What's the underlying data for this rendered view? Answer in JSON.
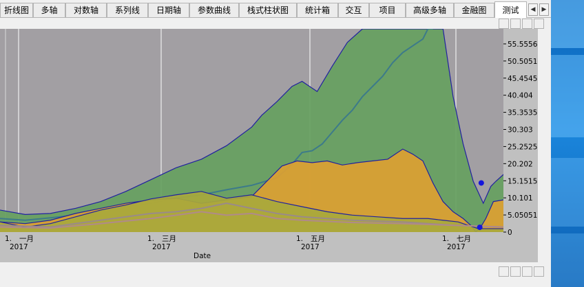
{
  "tabs": [
    {
      "label": "折线图",
      "active": false
    },
    {
      "label": "多轴",
      "active": false
    },
    {
      "label": "对数轴",
      "active": false
    },
    {
      "label": "系列线",
      "active": false
    },
    {
      "label": "日期轴",
      "active": false
    },
    {
      "label": "参数曲线",
      "active": false
    },
    {
      "label": "栈式柱状图",
      "active": false
    },
    {
      "label": "统计箱",
      "active": false
    },
    {
      "label": "交互",
      "active": false
    },
    {
      "label": "项目",
      "active": false
    },
    {
      "label": "高级多轴",
      "active": false
    },
    {
      "label": "金融图",
      "active": false
    },
    {
      "label": "测试",
      "active": true
    }
  ],
  "tab_scroll": {
    "left_icon": "chevron-left-icon",
    "right_icon": "chevron-right-icon"
  },
  "colors": {
    "plot_bg": "#a29fa3",
    "outer_bg": "#c0c0c0",
    "green_fill": "#66a060",
    "orange_fill": "#dca032",
    "olive_fill": "#a8a83c",
    "navy_line": "#2020a0",
    "teal_line": "#3c7a8a",
    "grid": "#ffffff",
    "marker": "#1414dc"
  },
  "chart_data": {
    "type": "area",
    "title": "",
    "xlabel": "Date",
    "ylabel": "",
    "x_ticks": [
      {
        "day": "1.",
        "month": "一月",
        "year": "2017"
      },
      {
        "day": "1.",
        "month": "三月",
        "year": "2017"
      },
      {
        "day": "1.",
        "month": "五月",
        "year": "2017"
      },
      {
        "day": "1.",
        "month": "七月",
        "year": "2017"
      }
    ],
    "y_ticks": [
      "55.5556",
      "50.5051",
      "45.4545",
      "40.404",
      "35.3535",
      "30.303",
      "25.2525",
      "20.202",
      "15.1515",
      "10.101",
      "5.05051",
      "0"
    ],
    "ylim": [
      0,
      60
    ],
    "x_range": [
      "2016-12-26",
      "2017-07-22"
    ],
    "grid": true,
    "series": [
      {
        "style": "filled-area",
        "color": "#66a060",
        "edge": "#2020a0",
        "points": [
          [
            0,
            6.5
          ],
          [
            5,
            5.2
          ],
          [
            10,
            5.5
          ],
          [
            15,
            7
          ],
          [
            20,
            9
          ],
          [
            25,
            12
          ],
          [
            30,
            15.5
          ],
          [
            35,
            19
          ],
          [
            40,
            21.5
          ],
          [
            45,
            25.5
          ],
          [
            50,
            31
          ],
          [
            52,
            34.5
          ],
          [
            55,
            38.5
          ],
          [
            58,
            43
          ],
          [
            60,
            44.5
          ],
          [
            63,
            41.5
          ],
          [
            66,
            49
          ],
          [
            69,
            56
          ],
          [
            72,
            60
          ],
          [
            80,
            60
          ],
          [
            85,
            60
          ],
          [
            88,
            60
          ],
          [
            90,
            40
          ],
          [
            92,
            26
          ],
          [
            94,
            15
          ],
          [
            96,
            8.5
          ],
          [
            97.5,
            13.5
          ],
          [
            98.5,
            15
          ],
          [
            100,
            17
          ]
        ]
      },
      {
        "style": "line",
        "color": "#3c7a8a",
        "points": [
          [
            0,
            4
          ],
          [
            5,
            3.5
          ],
          [
            10,
            4.2
          ],
          [
            15,
            5
          ],
          [
            20,
            6.3
          ],
          [
            25,
            7.5
          ],
          [
            30,
            8.5
          ],
          [
            35,
            10
          ],
          [
            40,
            11
          ],
          [
            45,
            12.5
          ],
          [
            50,
            13.8
          ],
          [
            55,
            16
          ],
          [
            58,
            20
          ],
          [
            60,
            23.5
          ],
          [
            62,
            24
          ],
          [
            64,
            26
          ],
          [
            66,
            29.5
          ],
          [
            68,
            33
          ],
          [
            70,
            36
          ],
          [
            72,
            40
          ],
          [
            74,
            43
          ],
          [
            76,
            46
          ],
          [
            78,
            50
          ],
          [
            80,
            53
          ],
          [
            82,
            55
          ],
          [
            84,
            57
          ],
          [
            85,
            60
          ],
          [
            86,
            60
          ]
        ]
      },
      {
        "style": "filled-area",
        "color": "#dca032",
        "edge": "#2020a0",
        "points": [
          [
            0,
            3
          ],
          [
            5,
            2.5
          ],
          [
            10,
            3.5
          ],
          [
            15,
            5.5
          ],
          [
            20,
            7
          ],
          [
            25,
            8.5
          ],
          [
            30,
            9.5
          ],
          [
            35,
            10
          ],
          [
            40,
            8.5
          ],
          [
            45,
            9.5
          ],
          [
            50,
            10.5
          ],
          [
            53,
            15
          ],
          [
            56,
            19.5
          ],
          [
            59,
            21
          ],
          [
            62,
            20.5
          ],
          [
            65,
            21
          ],
          [
            68,
            19.8
          ],
          [
            71,
            20.5
          ],
          [
            74,
            21
          ],
          [
            77,
            21.5
          ],
          [
            80,
            24.5
          ],
          [
            82,
            23
          ],
          [
            84,
            21
          ],
          [
            86,
            14.5
          ],
          [
            88,
            9
          ],
          [
            90,
            6
          ],
          [
            92,
            4
          ],
          [
            93.5,
            2
          ],
          [
            94.5,
            0
          ],
          [
            95.5,
            1.5
          ],
          [
            96.5,
            4
          ],
          [
            98,
            9
          ],
          [
            100,
            9.5
          ]
        ]
      },
      {
        "style": "filled-area",
        "color": "#a8a83c",
        "edge": "#2020a0",
        "points": [
          [
            0,
            3
          ],
          [
            5,
            1.5
          ],
          [
            10,
            2.5
          ],
          [
            15,
            4.5
          ],
          [
            20,
            6.5
          ],
          [
            25,
            8
          ],
          [
            30,
            9.8
          ],
          [
            35,
            11
          ],
          [
            40,
            12
          ],
          [
            45,
            10
          ],
          [
            50,
            11
          ],
          [
            55,
            9
          ],
          [
            60,
            7.5
          ],
          [
            65,
            6
          ],
          [
            70,
            5
          ],
          [
            75,
            4.5
          ],
          [
            80,
            4
          ],
          [
            85,
            4
          ],
          [
            88,
            3.5
          ],
          [
            91,
            3
          ],
          [
            93,
            2
          ],
          [
            95,
            1
          ],
          [
            100,
            1
          ]
        ]
      },
      {
        "style": "line",
        "color": "#9a8a8a",
        "points": [
          [
            0,
            2
          ],
          [
            10,
            1.5
          ],
          [
            20,
            3.5
          ],
          [
            30,
            5.5
          ],
          [
            35,
            6
          ],
          [
            40,
            7
          ],
          [
            45,
            8.5
          ],
          [
            50,
            7
          ],
          [
            55,
            5.5
          ],
          [
            60,
            4.5
          ],
          [
            70,
            3.5
          ],
          [
            80,
            3
          ],
          [
            90,
            2
          ],
          [
            100,
            1.5
          ]
        ]
      },
      {
        "style": "line",
        "color": "#b08a8a",
        "points": [
          [
            0,
            1.5
          ],
          [
            10,
            1.2
          ],
          [
            20,
            2.5
          ],
          [
            30,
            4
          ],
          [
            35,
            5
          ],
          [
            40,
            6
          ],
          [
            45,
            5
          ],
          [
            50,
            5.5
          ],
          [
            55,
            4
          ],
          [
            60,
            3.5
          ],
          [
            70,
            2.8
          ],
          [
            80,
            2.5
          ],
          [
            90,
            2
          ],
          [
            100,
            1.5
          ]
        ]
      }
    ],
    "markers": [
      {
        "x": 95.6,
        "y": 14.5
      },
      {
        "x": 95.3,
        "y": 1.4
      }
    ]
  }
}
